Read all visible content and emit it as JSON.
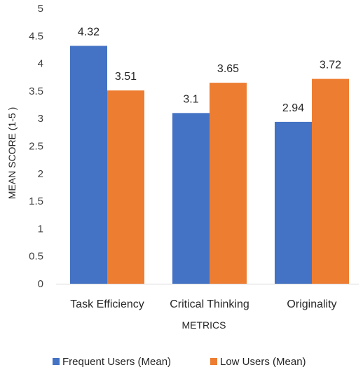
{
  "chart_data": {
    "type": "bar",
    "categories": [
      "Task Efficiency",
      "Critical Thinking",
      "Originality"
    ],
    "series": [
      {
        "name": "Frequent Users (Mean)",
        "values": [
          4.32,
          3.1,
          2.94
        ],
        "color": "#4472C4"
      },
      {
        "name": "Low Users (Mean)",
        "values": [
          3.51,
          3.65,
          3.72
        ],
        "color": "#ED7D31"
      }
    ],
    "data_labels": [
      [
        "4.32",
        "3.1",
        "2.94"
      ],
      [
        "3.51",
        "3.65",
        "3.72"
      ]
    ],
    "xlabel": "METRICS",
    "ylabel": "MEAN SCORE (1-5 )",
    "ylim": [
      0,
      5
    ],
    "yticks": [
      "0",
      "0.5",
      "1",
      "1.5",
      "2",
      "2.5",
      "3",
      "3.5",
      "4",
      "4.5",
      "5"
    ],
    "grid": false,
    "legend_position": "bottom"
  }
}
